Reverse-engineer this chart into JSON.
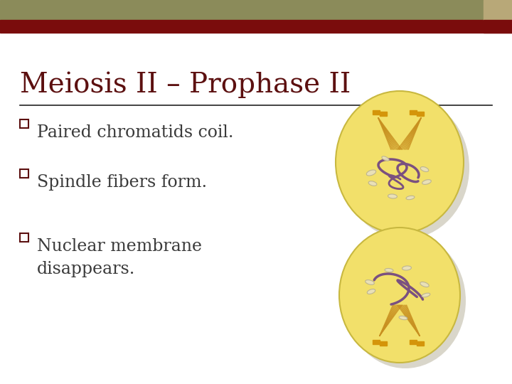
{
  "title": "Meiosis II – Prophase II",
  "title_color": "#5C1010",
  "title_fontsize": 28,
  "background_color": "#FFFFFF",
  "header_bar_olive_color": "#8B8B5A",
  "header_bar_red_color": "#7A0C0C",
  "header_accent_tan": "#B8A878",
  "bullet_points": [
    "Paired chromatids coil.",
    "Spindle fibers form.",
    "Nuclear membrane\ndisappears."
  ],
  "bullet_color": "#3A3A3A",
  "bullet_fontsize": 17,
  "bullet_square_color": "#5C1010",
  "line_color": "#222222",
  "cell_fill": "#F2E06A",
  "cell_edge": "#C8B840",
  "cell_shadow": "#C0BBA8",
  "chrom_color": "#7A5080",
  "spindle_color": "#C89020",
  "centriole_color": "#D4950A",
  "vesicle_color": "#E8E0C0",
  "vesicle_edge": "#B8B090"
}
